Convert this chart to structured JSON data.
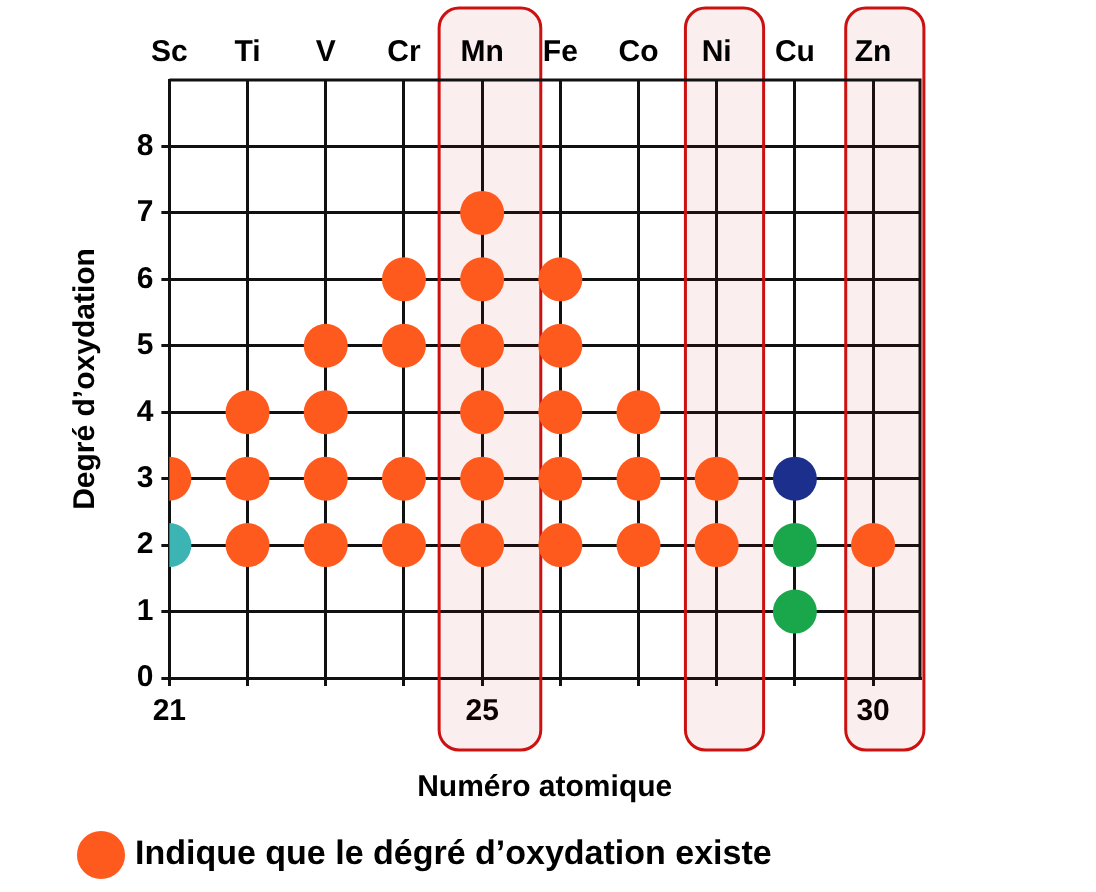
{
  "chart_data": {
    "type": "scatter",
    "xlabel": "Numéro atomique",
    "ylabel": "Degré d’oxydation",
    "xlim": [
      21,
      30.6
    ],
    "xticks": [
      21,
      {
        "value": 22,
        "label": null
      },
      {
        "value": 23,
        "label": null
      },
      {
        "value": 24,
        "label": null
      },
      25,
      {
        "value": 26,
        "label": null
      },
      {
        "value": 27,
        "label": null
      },
      {
        "value": 28,
        "label": null
      },
      {
        "value": 29,
        "label": null
      },
      30
    ],
    "ylim": [
      0,
      9
    ],
    "yticks": [
      0,
      1,
      2,
      3,
      4,
      5,
      6,
      7,
      8
    ],
    "annotations": [
      "Sc",
      "Ti",
      "V",
      "Cr",
      "Mn",
      "Fe",
      "Co",
      "Ni",
      "Cu",
      "Zn"
    ],
    "grid": true,
    "legend": "bottom",
    "marker": "circle",
    "bands": [
      {
        "axis": "x",
        "from": 24.45,
        "to": 25.75,
        "color": "#cc1111"
      },
      {
        "axis": "x",
        "from": 27.6,
        "to": 28.6,
        "color": "#cc1111"
      },
      {
        "axis": "x",
        "from": 29.65,
        "to": 30.65,
        "color": "#cc1111"
      }
    ],
    "series": [
      {
        "name": "Indique que le dégré d’oxydation existe",
        "color": "#ff5a1e",
        "x": [
          21,
          22,
          22,
          22,
          23,
          23,
          23,
          23,
          24,
          24,
          24,
          24,
          25,
          25,
          25,
          25,
          25,
          25,
          26,
          26,
          26,
          26,
          26,
          27,
          27,
          27,
          28,
          28,
          30
        ],
        "values": [
          3,
          2,
          3,
          4,
          2,
          3,
          4,
          5,
          2,
          3,
          5,
          6,
          2,
          3,
          4,
          5,
          6,
          7,
          2,
          3,
          4,
          5,
          6,
          2,
          3,
          4,
          2,
          3,
          2
        ]
      },
      {
        "color": "#1aa64a",
        "x": [
          29,
          29
        ],
        "values": [
          1,
          2
        ]
      },
      {
        "color": "#3cb4b4",
        "x": [
          21
        ],
        "values": [
          2
        ]
      },
      {
        "color": "#1c2f8c",
        "x": [
          29
        ],
        "values": [
          3
        ]
      }
    ]
  }
}
